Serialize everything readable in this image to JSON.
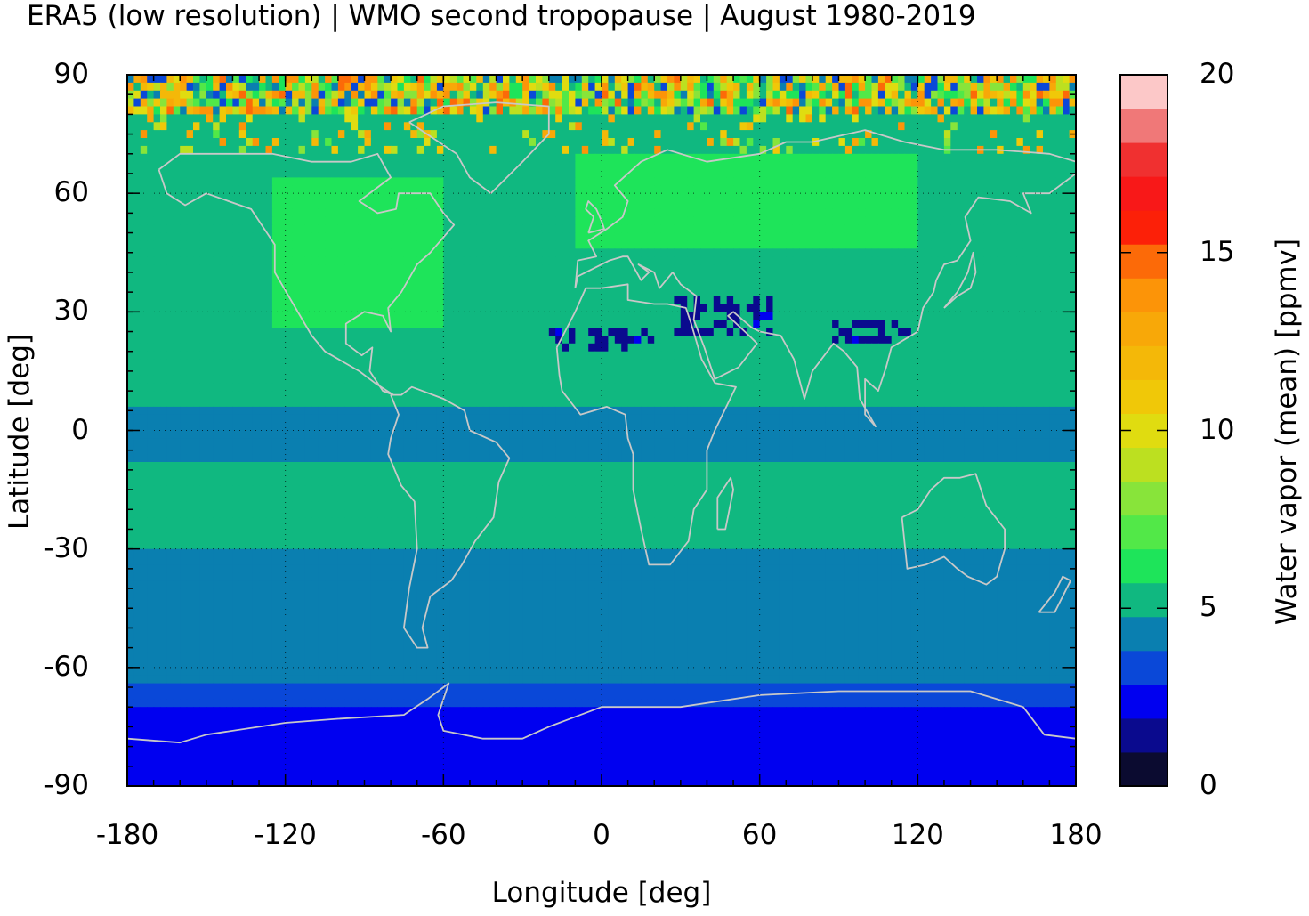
{
  "title": "ERA5 (low resolution) | WMO second tropopause | August 1980-2019",
  "chart_data": {
    "type": "heatmap",
    "projection": "equirectangular world map with coastlines",
    "xlabel": "Longitude [deg]",
    "ylabel": "Latitude [deg]",
    "xlim": [
      -180,
      180
    ],
    "ylim": [
      -90,
      90
    ],
    "x_ticks": [
      "-180",
      "-120",
      "-60",
      "0",
      "60",
      "120",
      "180"
    ],
    "y_ticks": [
      "90",
      "60",
      "30",
      "0",
      "-30",
      "-60",
      "-90"
    ],
    "grid": "dotted at major ticks",
    "colorbar": {
      "label": "Water vapor (mean) [ppmv]",
      "range": [
        0,
        20
      ],
      "ticks": [
        "0",
        "5",
        "10",
        "15",
        "20"
      ],
      "colors": [
        "#0b0b30",
        "#0a0a8e",
        "#0000f0",
        "#0a48d8",
        "#0a7fb0",
        "#10b880",
        "#1ee45a",
        "#52e848",
        "#88e43a",
        "#bce020",
        "#e0dc10",
        "#f0c808",
        "#f4b808",
        "#f8a808",
        "#fc9408",
        "#fc6a08",
        "#fc2008",
        "#f81818",
        "#f03030",
        "#f07878",
        "#fcc8c8"
      ]
    },
    "latitude_bands_ppmv": [
      {
        "lat": [
          -90,
          -70
        ],
        "value": 2.5,
        "note": "Antarctica"
      },
      {
        "lat": [
          -70,
          -60
        ],
        "value": 3.5
      },
      {
        "lat": [
          -60,
          -30
        ],
        "value": 4.5
      },
      {
        "lat": [
          -30,
          -10
        ],
        "value": 5.5
      },
      {
        "lat": [
          -10,
          8
        ],
        "value": 4.5
      },
      {
        "lat": [
          8,
          90
        ],
        "value": 5.5,
        "note": "with patches up to 7 over continents"
      },
      {
        "lat": [
          78,
          90
        ],
        "value": 6.5,
        "note": "high-latitude noise with values up to 20 and down to 0"
      }
    ],
    "anomalies": [
      {
        "region": "North Africa / Middle East / Asian monsoon",
        "lat": [
          20,
          35
        ],
        "value": 1.5
      },
      {
        "region": "North America and northern Eurasia continental",
        "value": 7
      },
      {
        "region": "Arctic rim",
        "value": 14
      }
    ]
  }
}
